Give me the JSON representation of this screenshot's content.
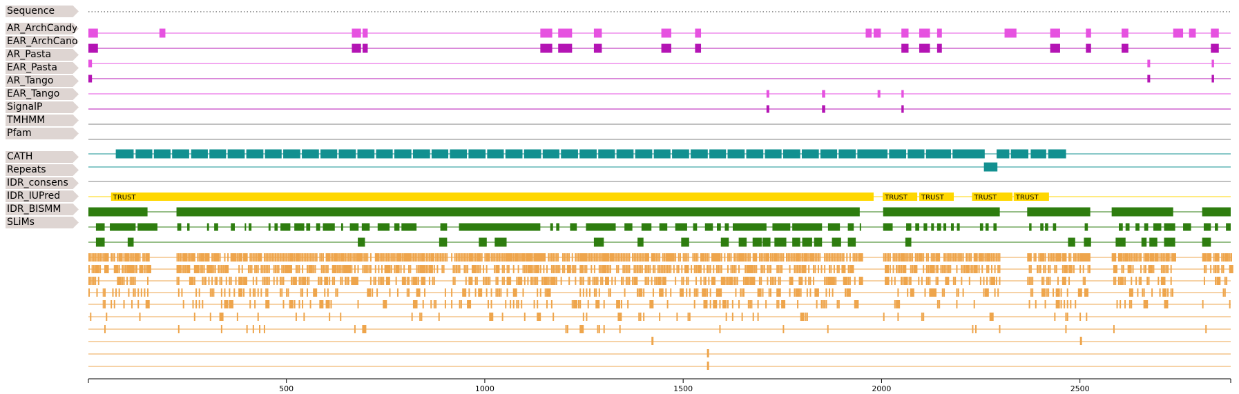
{
  "colors": {
    "label_bg": "#ded5d2",
    "archcandy": "#e652e0",
    "ear_archcandy": "#b414b4",
    "pfam": "#129090",
    "repeats": "#ffd700",
    "idr": "#2e7d0f",
    "slims": "#eea54c",
    "grey": "#808080"
  },
  "tracks": [
    {
      "label": "Sequence"
    },
    {
      "label": "AR_ArchCandy"
    },
    {
      "label": "EAR_ArchCandy"
    },
    {
      "label": "AR_Pasta"
    },
    {
      "label": "EAR_Pasta"
    },
    {
      "label": "AR_Tango"
    },
    {
      "label": "EAR_Tango"
    },
    {
      "label": "SignalP"
    },
    {
      "label": "TMHMM"
    },
    {
      "label": "Pfam"
    },
    {
      "label": "CATH"
    },
    {
      "label": "Repeats"
    },
    {
      "label": "IDR_consens"
    },
    {
      "label": "IDR_IUPred"
    },
    {
      "label": "IDR_BISMM"
    },
    {
      "label": "SLiMs"
    }
  ],
  "chart_data": {
    "type": "feature-track",
    "x_range": [
      1,
      2880
    ],
    "x_ticks": [
      500,
      1000,
      1500,
      2000,
      2500
    ],
    "ar_archcandy": [
      [
        1,
        25
      ],
      [
        180,
        195
      ],
      [
        665,
        688
      ],
      [
        692,
        705
      ],
      [
        1140,
        1170
      ],
      [
        1185,
        1220
      ],
      [
        1275,
        1295
      ],
      [
        1445,
        1470
      ],
      [
        1530,
        1545
      ],
      [
        1960,
        1975
      ],
      [
        1980,
        1998
      ],
      [
        2050,
        2068
      ],
      [
        2095,
        2122
      ],
      [
        2140,
        2152
      ],
      [
        2310,
        2340
      ],
      [
        2425,
        2450
      ],
      [
        2515,
        2528
      ],
      [
        2605,
        2622
      ],
      [
        2735,
        2760
      ],
      [
        2775,
        2792
      ],
      [
        2830,
        2850
      ]
    ],
    "ear_archcandy": [
      [
        1,
        25
      ],
      [
        665,
        688
      ],
      [
        692,
        705
      ],
      [
        1140,
        1170
      ],
      [
        1185,
        1220
      ],
      [
        1275,
        1295
      ],
      [
        1445,
        1470
      ],
      [
        1530,
        1545
      ],
      [
        2050,
        2068
      ],
      [
        2095,
        2122
      ],
      [
        2140,
        2152
      ],
      [
        2425,
        2450
      ],
      [
        2515,
        2528
      ],
      [
        2605,
        2622
      ],
      [
        2830,
        2850
      ]
    ],
    "ar_pasta": [
      [
        1,
        10
      ],
      [
        2670,
        2677
      ],
      [
        2832,
        2838
      ]
    ],
    "ear_pasta": [
      [
        1,
        10
      ],
      [
        2670,
        2677
      ],
      [
        2832,
        2838
      ]
    ],
    "ar_tango": [
      [
        1710,
        1717
      ],
      [
        1850,
        1858
      ],
      [
        1990,
        1997
      ],
      [
        2050,
        2056
      ]
    ],
    "ear_tango": [
      [
        1710,
        1717
      ],
      [
        1850,
        1858
      ],
      [
        2050,
        2056
      ]
    ],
    "pfam_row1": [
      [
        70,
        115
      ],
      [
        120,
        162
      ],
      [
        166,
        208
      ],
      [
        212,
        255
      ],
      [
        260,
        302
      ],
      [
        306,
        348
      ],
      [
        352,
        395
      ],
      [
        399,
        442
      ],
      [
        446,
        488
      ],
      [
        492,
        535
      ],
      [
        539,
        582
      ],
      [
        586,
        628
      ],
      [
        632,
        675
      ],
      [
        679,
        722
      ],
      [
        726,
        768
      ],
      [
        772,
        815
      ],
      [
        819,
        862
      ],
      [
        866,
        908
      ],
      [
        912,
        955
      ],
      [
        959,
        1002
      ],
      [
        1006,
        1048
      ],
      [
        1052,
        1095
      ],
      [
        1099,
        1142
      ],
      [
        1146,
        1188
      ],
      [
        1192,
        1235
      ],
      [
        1239,
        1282
      ],
      [
        1286,
        1328
      ],
      [
        1332,
        1375
      ],
      [
        1379,
        1422
      ],
      [
        1426,
        1468
      ],
      [
        1472,
        1515
      ],
      [
        1519,
        1562
      ],
      [
        1566,
        1608
      ],
      [
        1612,
        1655
      ],
      [
        1659,
        1702
      ],
      [
        1706,
        1748
      ],
      [
        1752,
        1795
      ],
      [
        1799,
        1842
      ],
      [
        1846,
        1888
      ],
      [
        1892,
        1935
      ],
      [
        1939,
        2015
      ],
      [
        2019,
        2062
      ],
      [
        2066,
        2108
      ],
      [
        2112,
        2175
      ],
      [
        2179,
        2260
      ],
      [
        2290,
        2322
      ],
      [
        2326,
        2370
      ],
      [
        2376,
        2415
      ],
      [
        2420,
        2465
      ]
    ],
    "pfam_row2": [
      [
        2258,
        2292
      ]
    ],
    "repeats": [
      [
        58,
        1980,
        "TRUST"
      ],
      [
        2003,
        2090,
        "TRUST"
      ],
      [
        2095,
        2182,
        "TRUST"
      ],
      [
        2228,
        2330,
        "TRUST"
      ],
      [
        2333,
        2422,
        "TRUST"
      ]
    ],
    "idr_consens": [
      [
        1,
        150
      ],
      [
        223,
        1945
      ],
      [
        2004,
        2298
      ],
      [
        2367,
        2526
      ],
      [
        2580,
        2735
      ],
      [
        2808,
        2880
      ]
    ],
    "idr_iupred": [
      [
        20,
        42
      ],
      [
        55,
        120
      ],
      [
        125,
        175
      ],
      [
        225,
        235
      ],
      [
        250,
        256
      ],
      [
        300,
        305
      ],
      [
        318,
        328
      ],
      [
        360,
        370
      ],
      [
        395,
        398
      ],
      [
        405,
        412
      ],
      [
        455,
        460
      ],
      [
        470,
        478
      ],
      [
        485,
        510
      ],
      [
        520,
        545
      ],
      [
        550,
        560
      ],
      [
        575,
        585
      ],
      [
        592,
        622
      ],
      [
        638,
        643
      ],
      [
        660,
        682
      ],
      [
        690,
        710
      ],
      [
        730,
        760
      ],
      [
        772,
        785
      ],
      [
        790,
        828
      ],
      [
        888,
        905
      ],
      [
        935,
        1140
      ],
      [
        1165,
        1172
      ],
      [
        1180,
        1188
      ],
      [
        1215,
        1232
      ],
      [
        1255,
        1330
      ],
      [
        1352,
        1372
      ],
      [
        1395,
        1420
      ],
      [
        1440,
        1460
      ],
      [
        1480,
        1510
      ],
      [
        1525,
        1535
      ],
      [
        1555,
        1575
      ],
      [
        1585,
        1595
      ],
      [
        1605,
        1615
      ],
      [
        1625,
        1710
      ],
      [
        1725,
        1770
      ],
      [
        1775,
        1850
      ],
      [
        1865,
        1895
      ],
      [
        1915,
        1930
      ],
      [
        1945,
        1948
      ],
      [
        2004,
        2028
      ],
      [
        2062,
        2075
      ],
      [
        2085,
        2095
      ],
      [
        2106,
        2115
      ],
      [
        2125,
        2132
      ],
      [
        2140,
        2150
      ],
      [
        2156,
        2163
      ],
      [
        2175,
        2182
      ],
      [
        2190,
        2197
      ],
      [
        2248,
        2256
      ],
      [
        2262,
        2270
      ],
      [
        2282,
        2290
      ],
      [
        2372,
        2378
      ],
      [
        2400,
        2408
      ],
      [
        2412,
        2420
      ],
      [
        2432,
        2440
      ],
      [
        2512,
        2520
      ],
      [
        2598,
        2608
      ],
      [
        2615,
        2625
      ],
      [
        2640,
        2650
      ],
      [
        2662,
        2672
      ],
      [
        2685,
        2705
      ],
      [
        2712,
        2740
      ],
      [
        2760,
        2780
      ],
      [
        2812,
        2830
      ],
      [
        2840,
        2848
      ],
      [
        2868,
        2880
      ]
    ],
    "idr_bismm": [
      [
        20,
        42
      ],
      [
        100,
        115
      ],
      [
        680,
        698
      ],
      [
        885,
        905
      ],
      [
        985,
        1005
      ],
      [
        1025,
        1055
      ],
      [
        1275,
        1300
      ],
      [
        1385,
        1400
      ],
      [
        1495,
        1515
      ],
      [
        1595,
        1615
      ],
      [
        1640,
        1660
      ],
      [
        1675,
        1698
      ],
      [
        1700,
        1720
      ],
      [
        1730,
        1760
      ],
      [
        1775,
        1795
      ],
      [
        1800,
        1825
      ],
      [
        1830,
        1850
      ],
      [
        1875,
        1898
      ],
      [
        1915,
        1935
      ],
      [
        2060,
        2075
      ],
      [
        2470,
        2488
      ],
      [
        2510,
        2528
      ],
      [
        2590,
        2615
      ],
      [
        2655,
        2668
      ],
      [
        2675,
        2695
      ],
      [
        2712,
        2740
      ],
      [
        2808,
        2830
      ]
    ]
  }
}
